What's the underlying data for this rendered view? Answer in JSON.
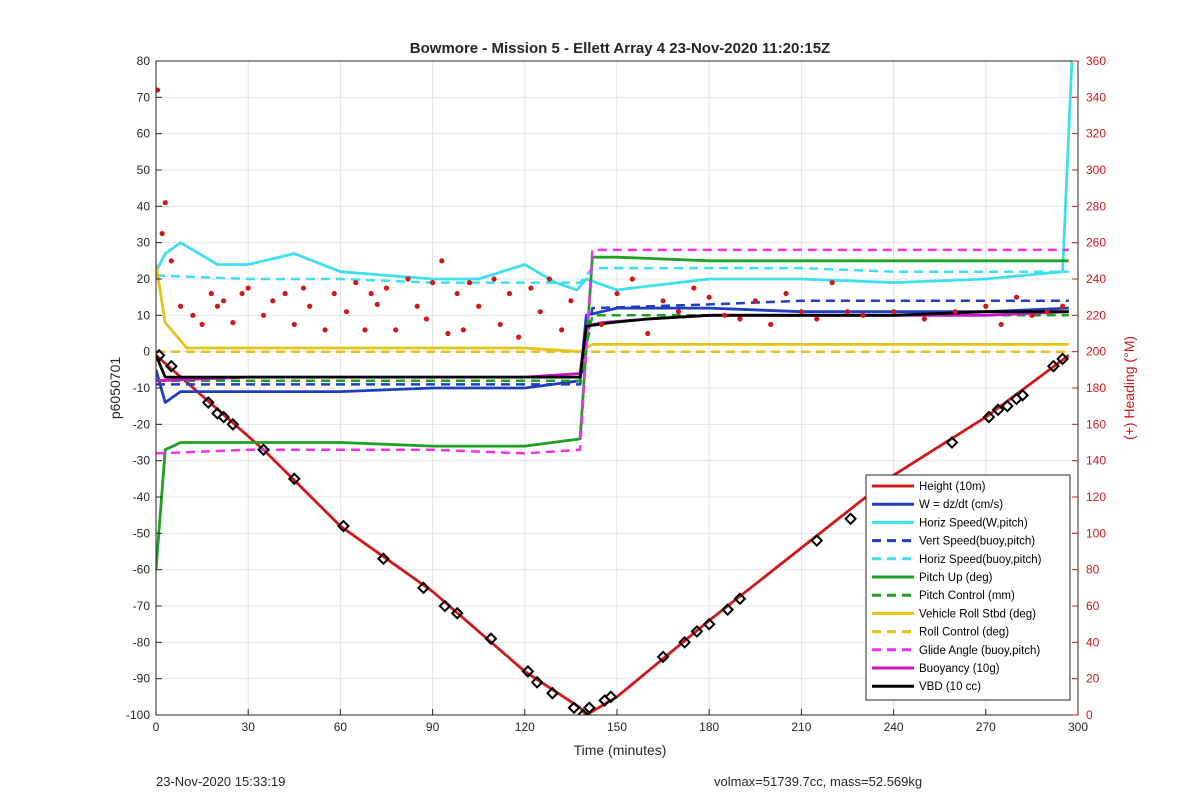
{
  "footer": {
    "timestamp": "23-Nov-2020 15:33:19",
    "summary": "volmax=51739.7cc, mass=52.569kg"
  },
  "chart_data": {
    "type": "line",
    "title": "Bowmore - Mission 5 - Ellett Array 4 23-Nov-2020 11:20:15Z",
    "xlabel": "Time (minutes)",
    "ylabel": "p6050701",
    "y2label": "(+) Heading (°M)",
    "xlim": [
      0,
      300
    ],
    "ylim": [
      -100,
      80
    ],
    "y2lim": [
      0,
      360
    ],
    "xticks": [
      0,
      30,
      60,
      90,
      120,
      150,
      180,
      210,
      240,
      270,
      300
    ],
    "yticks": [
      80,
      70,
      60,
      50,
      40,
      30,
      20,
      10,
      0,
      -10,
      -20,
      -30,
      -40,
      -50,
      -60,
      -70,
      -80,
      -90,
      -100
    ],
    "y2ticks": [
      360,
      340,
      320,
      300,
      280,
      260,
      240,
      220,
      200,
      180,
      160,
      140,
      120,
      100,
      80,
      60,
      40,
      20,
      0
    ],
    "grid": true,
    "legend_position": "lower-right",
    "series": [
      {
        "name": "Height (10m)",
        "color": "#d0181a",
        "style": "solid",
        "x": [
          0,
          35,
          60,
          90,
          120,
          138,
          140,
          150,
          180,
          210,
          240,
          270,
          297
        ],
        "y": [
          -1,
          -27,
          -48,
          -66,
          -88,
          -98,
          -100,
          -95,
          -74,
          -54,
          -34,
          -18,
          -1
        ]
      },
      {
        "name": "W = dz/dt (cm/s)",
        "color": "#1f3fbf",
        "style": "solid",
        "x": [
          0,
          3,
          8,
          30,
          60,
          90,
          120,
          138,
          140,
          150,
          180,
          210,
          240,
          270,
          297
        ],
        "y": [
          -5,
          -14,
          -11,
          -11,
          -11,
          -10,
          -10,
          -8,
          10,
          12,
          12,
          11,
          11,
          11,
          12
        ]
      },
      {
        "name": "Horiz Speed(W,pitch)",
        "color": "#3ee0ee",
        "style": "solid",
        "x": [
          0,
          3,
          8,
          20,
          30,
          45,
          60,
          90,
          105,
          120,
          130,
          137,
          140,
          150,
          180,
          210,
          240,
          270,
          295,
          298
        ],
        "y": [
          22,
          27,
          30,
          24,
          24,
          27,
          22,
          20,
          20,
          24,
          19,
          17,
          20,
          17,
          20,
          20,
          19,
          20,
          22,
          80
        ]
      },
      {
        "name": "Vert Speed(buoy,pitch)",
        "color": "#1f3fbf",
        "style": "dashed",
        "x": [
          0,
          30,
          60,
          90,
          120,
          138,
          142,
          180,
          210,
          240,
          270,
          297
        ],
        "y": [
          -9,
          -9,
          -9,
          -9,
          -9,
          -9,
          12,
          13,
          14,
          14,
          14,
          14
        ]
      },
      {
        "name": "Horiz Speed(buoy,pitch)",
        "color": "#3ee0ee",
        "style": "dashed",
        "x": [
          0,
          30,
          60,
          90,
          120,
          138,
          142,
          180,
          210,
          240,
          270,
          297
        ],
        "y": [
          21,
          20,
          20,
          19,
          19,
          19,
          23,
          23,
          23,
          22,
          22,
          22
        ]
      },
      {
        "name": "Pitch Up (deg)",
        "color": "#1ea023",
        "style": "solid",
        "x": [
          0,
          3,
          8,
          30,
          60,
          90,
          120,
          138,
          142,
          150,
          180,
          210,
          240,
          270,
          297
        ],
        "y": [
          -60,
          -27,
          -25,
          -25,
          -25,
          -26,
          -26,
          -24,
          26,
          26,
          25,
          25,
          25,
          25,
          25
        ]
      },
      {
        "name": "Pitch Control (mm)",
        "color": "#1ea023",
        "style": "dashed",
        "x": [
          0,
          30,
          60,
          90,
          120,
          138,
          142,
          180,
          210,
          240,
          270,
          297
        ],
        "y": [
          -8,
          -8,
          -8,
          -8,
          -8,
          -8,
          10,
          10,
          10,
          10,
          10,
          10
        ]
      },
      {
        "name": "Vehicle Roll Stbd (deg)",
        "color": "#e6c31a",
        "style": "solid",
        "x": [
          0,
          3,
          10,
          30,
          60,
          90,
          120,
          138,
          142,
          180,
          210,
          240,
          270,
          297
        ],
        "y": [
          24,
          8,
          1,
          1,
          1,
          1,
          1,
          0,
          2,
          2,
          2,
          2,
          2,
          2
        ]
      },
      {
        "name": "Roll Control (deg)",
        "color": "#e6c31a",
        "style": "dashed",
        "x": [
          0,
          30,
          60,
          90,
          120,
          138,
          142,
          180,
          210,
          240,
          270,
          297
        ],
        "y": [
          0,
          0,
          0,
          0,
          0,
          0,
          0,
          0,
          0,
          0,
          0,
          0
        ]
      },
      {
        "name": "Glide Angle (buoy,pitch)",
        "color": "#ee33ee",
        "style": "dashed",
        "x": [
          0,
          30,
          60,
          90,
          120,
          138,
          142,
          180,
          210,
          240,
          270,
          297
        ],
        "y": [
          -28,
          -27,
          -27,
          -27,
          -28,
          -27,
          28,
          28,
          28,
          28,
          28,
          28
        ]
      },
      {
        "name": "Buoyancy (10g)",
        "color": "#c418c4",
        "style": "solid",
        "x": [
          0,
          30,
          60,
          90,
          120,
          138,
          140,
          145,
          160,
          180,
          210,
          240,
          270,
          297
        ],
        "y": [
          -8,
          -7,
          -7,
          -7,
          -7,
          -6,
          7,
          8,
          9,
          10,
          10,
          10,
          10,
          11
        ]
      },
      {
        "name": "VBD (10 cc)",
        "color": "#000000",
        "style": "solid",
        "x": [
          0,
          3,
          30,
          60,
          90,
          120,
          138,
          140,
          148,
          160,
          180,
          210,
          240,
          270,
          297
        ],
        "y": [
          -1,
          -7,
          -7,
          -7,
          -7,
          -7,
          -7,
          7,
          8,
          9,
          10,
          10,
          10,
          11,
          11
        ]
      }
    ],
    "heading_points": {
      "name": "Heading",
      "color": "#d0181a",
      "axis": "right",
      "x": [
        0.5,
        2,
        3,
        5,
        8,
        12,
        15,
        18,
        20,
        22,
        25,
        28,
        30,
        35,
        38,
        42,
        45,
        48,
        50,
        55,
        58,
        62,
        65,
        68,
        70,
        72,
        75,
        78,
        82,
        85,
        88,
        90,
        93,
        95,
        98,
        100,
        102,
        105,
        110,
        112,
        115,
        118,
        122,
        125,
        128,
        132,
        135,
        145,
        150,
        155,
        160,
        165,
        170,
        175,
        180,
        185,
        190,
        195,
        200,
        205,
        210,
        215,
        220,
        225,
        230,
        240,
        250,
        260,
        270,
        275,
        280,
        285,
        290,
        295
      ],
      "y": [
        344,
        265,
        282,
        250,
        225,
        220,
        215,
        232,
        225,
        228,
        216,
        232,
        235,
        220,
        228,
        232,
        215,
        235,
        225,
        212,
        232,
        222,
        238,
        212,
        232,
        226,
        235,
        212,
        240,
        225,
        218,
        238,
        250,
        210,
        232,
        212,
        238,
        225,
        240,
        215,
        232,
        208,
        235,
        222,
        240,
        212,
        228,
        215,
        232,
        240,
        210,
        228,
        222,
        235,
        230,
        220,
        218,
        228,
        215,
        232,
        222,
        218,
        238,
        222,
        220,
        222,
        218,
        222,
        225,
        215,
        230,
        220,
        222,
        225
      ]
    },
    "marker_points": {
      "name": "Height markers",
      "color": "#000000",
      "x": [
        1,
        5,
        17,
        20,
        22,
        25,
        35,
        45,
        61,
        74,
        87,
        94,
        98,
        109,
        121,
        124,
        129,
        136,
        139,
        141,
        146,
        148,
        165,
        172,
        176,
        180,
        186,
        190,
        215,
        226,
        259,
        271,
        274,
        277,
        280,
        282,
        292,
        295
      ],
      "y": [
        -1,
        -4,
        -14,
        -17,
        -18,
        -20,
        -27,
        -35,
        -48,
        -57,
        -65,
        -70,
        -72,
        -79,
        -88,
        -91,
        -94,
        -98,
        -100,
        -98,
        -96,
        -95,
        -84,
        -80,
        -77,
        -75,
        -71,
        -68,
        -52,
        -46,
        -25,
        -18,
        -16,
        -15,
        -13,
        -12,
        -4,
        -2
      ]
    }
  }
}
